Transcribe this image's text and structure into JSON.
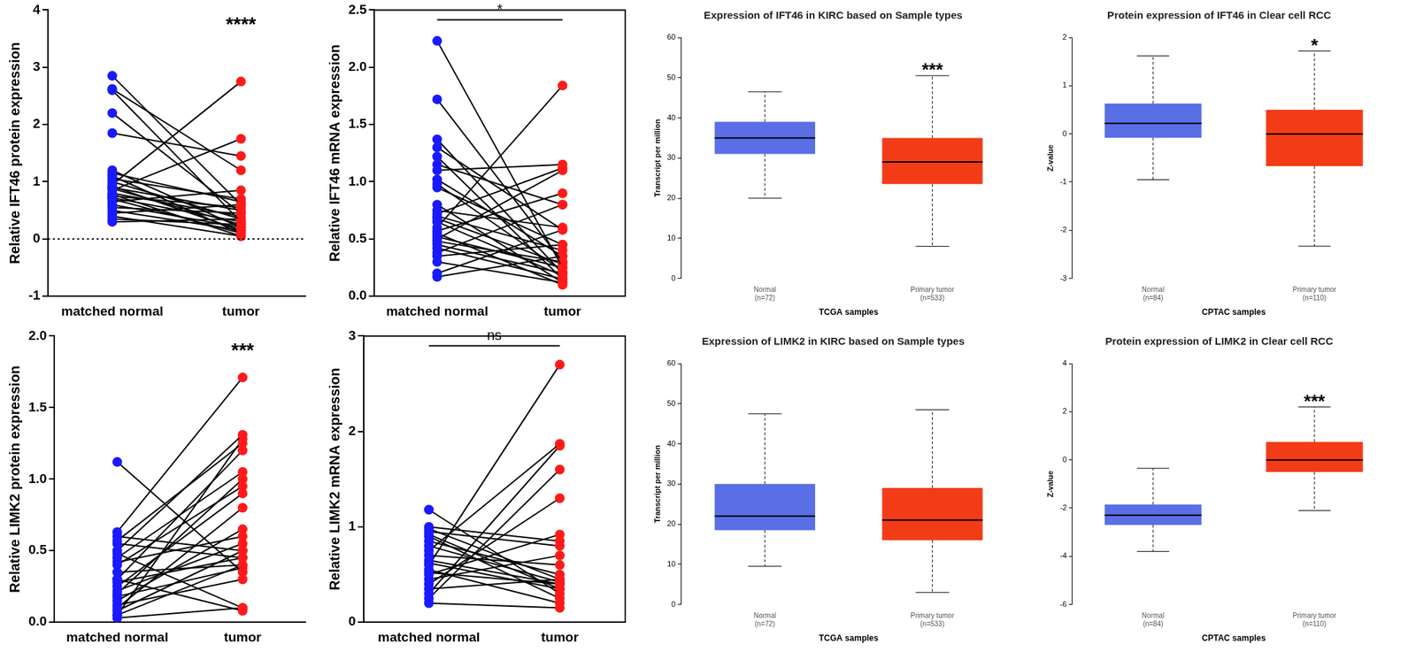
{
  "chart_data": [
    {
      "type": "paired_dot",
      "ylabel": "Relative IFT46 protein expression",
      "categories": [
        "matched normal",
        "tumor"
      ],
      "colors": [
        "#1a1aff",
        "#ff1a1a"
      ],
      "pairs": [
        [
          2.85,
          0.6
        ],
        [
          2.62,
          1.2
        ],
        [
          2.6,
          0.3
        ],
        [
          2.2,
          0.45
        ],
        [
          1.85,
          1.45
        ],
        [
          1.2,
          0.2
        ],
        [
          1.15,
          0.65
        ],
        [
          1.1,
          0.1
        ],
        [
          1.05,
          0.7
        ],
        [
          1.0,
          0.35
        ],
        [
          0.95,
          2.75
        ],
        [
          0.92,
          0.15
        ],
        [
          0.9,
          0.5
        ],
        [
          0.88,
          0.25
        ],
        [
          0.85,
          1.75
        ],
        [
          0.8,
          0.4
        ],
        [
          0.78,
          0.05
        ],
        [
          0.75,
          0.55
        ],
        [
          0.72,
          0.3
        ],
        [
          0.7,
          0.1
        ],
        [
          0.65,
          0.85
        ],
        [
          0.6,
          0.2
        ],
        [
          0.55,
          0.45
        ],
        [
          0.5,
          0.15
        ],
        [
          0.45,
          0.6
        ],
        [
          0.4,
          0.05
        ],
        [
          0.35,
          0.25
        ],
        [
          0.3,
          0.35
        ]
      ],
      "ylim": [
        -1,
        4
      ],
      "yticks": [
        -1,
        0,
        1,
        2,
        3,
        4
      ],
      "hline": 0,
      "annotation": "****"
    },
    {
      "type": "paired_dot",
      "ylabel": "Relative IFT46 mRNA expression",
      "categories": [
        "matched normal",
        "tumor"
      ],
      "colors": [
        "#1a1aff",
        "#ff1a1a"
      ],
      "pairs": [
        [
          2.23,
          0.25
        ],
        [
          1.72,
          0.3
        ],
        [
          1.37,
          0.2
        ],
        [
          1.3,
          0.58
        ],
        [
          1.22,
          0.15
        ],
        [
          1.15,
          0.8
        ],
        [
          1.1,
          1.15
        ],
        [
          1.02,
          0.35
        ],
        [
          0.98,
          0.22
        ],
        [
          0.95,
          0.45
        ],
        [
          0.8,
          0.12
        ],
        [
          0.75,
          0.6
        ],
        [
          0.72,
          1.12
        ],
        [
          0.7,
          0.4
        ],
        [
          0.68,
          0.28
        ],
        [
          0.65,
          0.18
        ],
        [
          0.6,
          1.84
        ],
        [
          0.57,
          0.9
        ],
        [
          0.55,
          0.1
        ],
        [
          0.52,
          0.25
        ],
        [
          0.5,
          1.1
        ],
        [
          0.48,
          0.3
        ],
        [
          0.45,
          0.2
        ],
        [
          0.42,
          0.15
        ],
        [
          0.38,
          0.8
        ],
        [
          0.35,
          0.45
        ],
        [
          0.3,
          0.12
        ],
        [
          0.2,
          0.58
        ],
        [
          0.17,
          0.35
        ]
      ],
      "ylim": [
        0,
        2.5
      ],
      "yticks": [
        {
          "value": 0,
          "label": "0.0"
        },
        0.5,
        {
          "value": 1,
          "label": "1.0"
        },
        1.5,
        {
          "value": 2,
          "label": "2.0"
        },
        2.5
      ],
      "annotation": "*"
    },
    {
      "type": "box",
      "title": "Expression of IFT46 in KIRC based on Sample types",
      "xlabel": "TCGA samples",
      "ylabel": "Transcript per million",
      "categories": [
        "Normal\n(n=72)",
        "Primary tumor\n(n=533)"
      ],
      "colors": [
        "#5a6fe6",
        "#f23c17"
      ],
      "stats": [
        {
          "min": 20,
          "q1": 31,
          "median": 35,
          "q3": 39,
          "max": 46.5
        },
        {
          "min": 8,
          "q1": 23.5,
          "median": 29,
          "q3": 35,
          "max": 50.5
        }
      ],
      "ylim": [
        0,
        60
      ],
      "yticks": [
        0,
        10,
        20,
        30,
        40,
        50,
        60
      ],
      "annotation": "***"
    },
    {
      "type": "box",
      "title": "Protein expression of IFT46 in Clear cell RCC",
      "xlabel": "CPTAC samples",
      "ylabel": "Z-value",
      "categories": [
        "Normal\n(n=84)",
        "Primary tumor\n(n=110)"
      ],
      "colors": [
        "#5a6fe6",
        "#f23c17"
      ],
      "stats": [
        {
          "min": -0.95,
          "q1": -0.08,
          "median": 0.22,
          "q3": 0.63,
          "max": 1.62
        },
        {
          "min": -2.33,
          "q1": -0.67,
          "median": 0,
          "q3": 0.5,
          "max": 1.72
        }
      ],
      "ylim": [
        -3,
        2
      ],
      "yticks": [
        -3,
        -2,
        -1,
        0,
        1,
        2
      ],
      "annotation": "*"
    },
    {
      "type": "paired_dot",
      "ylabel": "Relative LIMK2 protein expression",
      "categories": [
        "matched normal",
        "tumor"
      ],
      "colors": [
        "#1a1aff",
        "#ff1a1a"
      ],
      "pairs": [
        [
          1.12,
          0.35
        ],
        [
          0.63,
          1.71
        ],
        [
          0.6,
          0.5
        ],
        [
          0.57,
          1.25
        ],
        [
          0.55,
          0.45
        ],
        [
          0.5,
          1.31
        ],
        [
          0.48,
          0.1
        ],
        [
          0.45,
          1.05
        ],
        [
          0.42,
          0.6
        ],
        [
          0.4,
          0.95
        ],
        [
          0.35,
          0.4
        ],
        [
          0.3,
          1.2
        ],
        [
          0.28,
          0.45
        ],
        [
          0.25,
          0.9
        ],
        [
          0.22,
          0.55
        ],
        [
          0.2,
          1.0
        ],
        [
          0.15,
          0.65
        ],
        [
          0.12,
          0.3
        ],
        [
          0.1,
          0.8
        ],
        [
          0.08,
          0.5
        ],
        [
          0.05,
          0.4
        ],
        [
          0.05,
          1.28
        ],
        [
          0.03,
          0.1
        ],
        [
          0.3,
          0.08
        ],
        [
          0.18,
          0.38
        ]
      ],
      "ylim": [
        0,
        2
      ],
      "yticks": [
        {
          "value": 0,
          "label": "0.0"
        },
        0.5,
        {
          "value": 1,
          "label": "1.0"
        },
        1.5,
        {
          "value": 2,
          "label": "2.0"
        }
      ],
      "annotation": "***"
    },
    {
      "type": "paired_dot",
      "ylabel": "Relative LIMK2 mRNA expression",
      "categories": [
        "matched normal",
        "tumor"
      ],
      "colors": [
        "#1a1aff",
        "#ff1a1a"
      ],
      "pairs": [
        [
          1.18,
          0.3
        ],
        [
          1.0,
          0.85
        ],
        [
          0.98,
          0.45
        ],
        [
          0.95,
          0.8
        ],
        [
          0.92,
          0.35
        ],
        [
          0.9,
          0.25
        ],
        [
          0.85,
          0.5
        ],
        [
          0.8,
          0.42
        ],
        [
          0.75,
          1.87
        ],
        [
          0.7,
          0.6
        ],
        [
          0.65,
          0.4
        ],
        [
          0.6,
          2.7
        ],
        [
          0.55,
          0.2
        ],
        [
          0.5,
          0.92
        ],
        [
          0.45,
          0.7
        ],
        [
          0.4,
          1.3
        ],
        [
          0.35,
          0.45
        ],
        [
          0.3,
          1.85
        ],
        [
          0.25,
          1.6
        ],
        [
          0.2,
          0.15
        ],
        [
          0.62,
          0.35
        ],
        [
          0.52,
          0.4
        ]
      ],
      "ylim": [
        0,
        3
      ],
      "yticks": [
        0,
        1,
        2,
        3
      ],
      "annotation": "ns"
    },
    {
      "type": "box",
      "title": "Expression of LIMK2 in KIRC based on Sample types",
      "xlabel": "TCGA samples",
      "ylabel": "Transcript per million",
      "categories": [
        "Normal\n(n=72)",
        "Primary tumor\n(n=533)"
      ],
      "colors": [
        "#5a6fe6",
        "#f23c17"
      ],
      "stats": [
        {
          "min": 9.5,
          "q1": 18.5,
          "median": 22,
          "q3": 30,
          "max": 47.5
        },
        {
          "min": 3,
          "q1": 16,
          "median": 21,
          "q3": 29,
          "max": 48.5
        }
      ],
      "ylim": [
        0,
        60
      ],
      "yticks": [
        0,
        10,
        20,
        30,
        40,
        50,
        60
      ]
    },
    {
      "type": "box",
      "title": "Protein expression of LIMK2 in Clear cell RCC",
      "xlabel": "CPTAC samples",
      "ylabel": "Z-value",
      "categories": [
        "Normal\n(n=84)",
        "Primary tumor\n(n=110)"
      ],
      "colors": [
        "#5a6fe6",
        "#f23c17"
      ],
      "stats": [
        {
          "min": -3.8,
          "q1": -2.7,
          "median": -2.3,
          "q3": -1.85,
          "max": -0.35
        },
        {
          "min": -2.1,
          "q1": -0.5,
          "median": 0,
          "q3": 0.75,
          "max": 2.2
        }
      ],
      "ylim": [
        -6,
        4
      ],
      "yticks": [
        -6,
        -4,
        -2,
        0,
        2,
        4
      ],
      "annotation": "***"
    }
  ]
}
